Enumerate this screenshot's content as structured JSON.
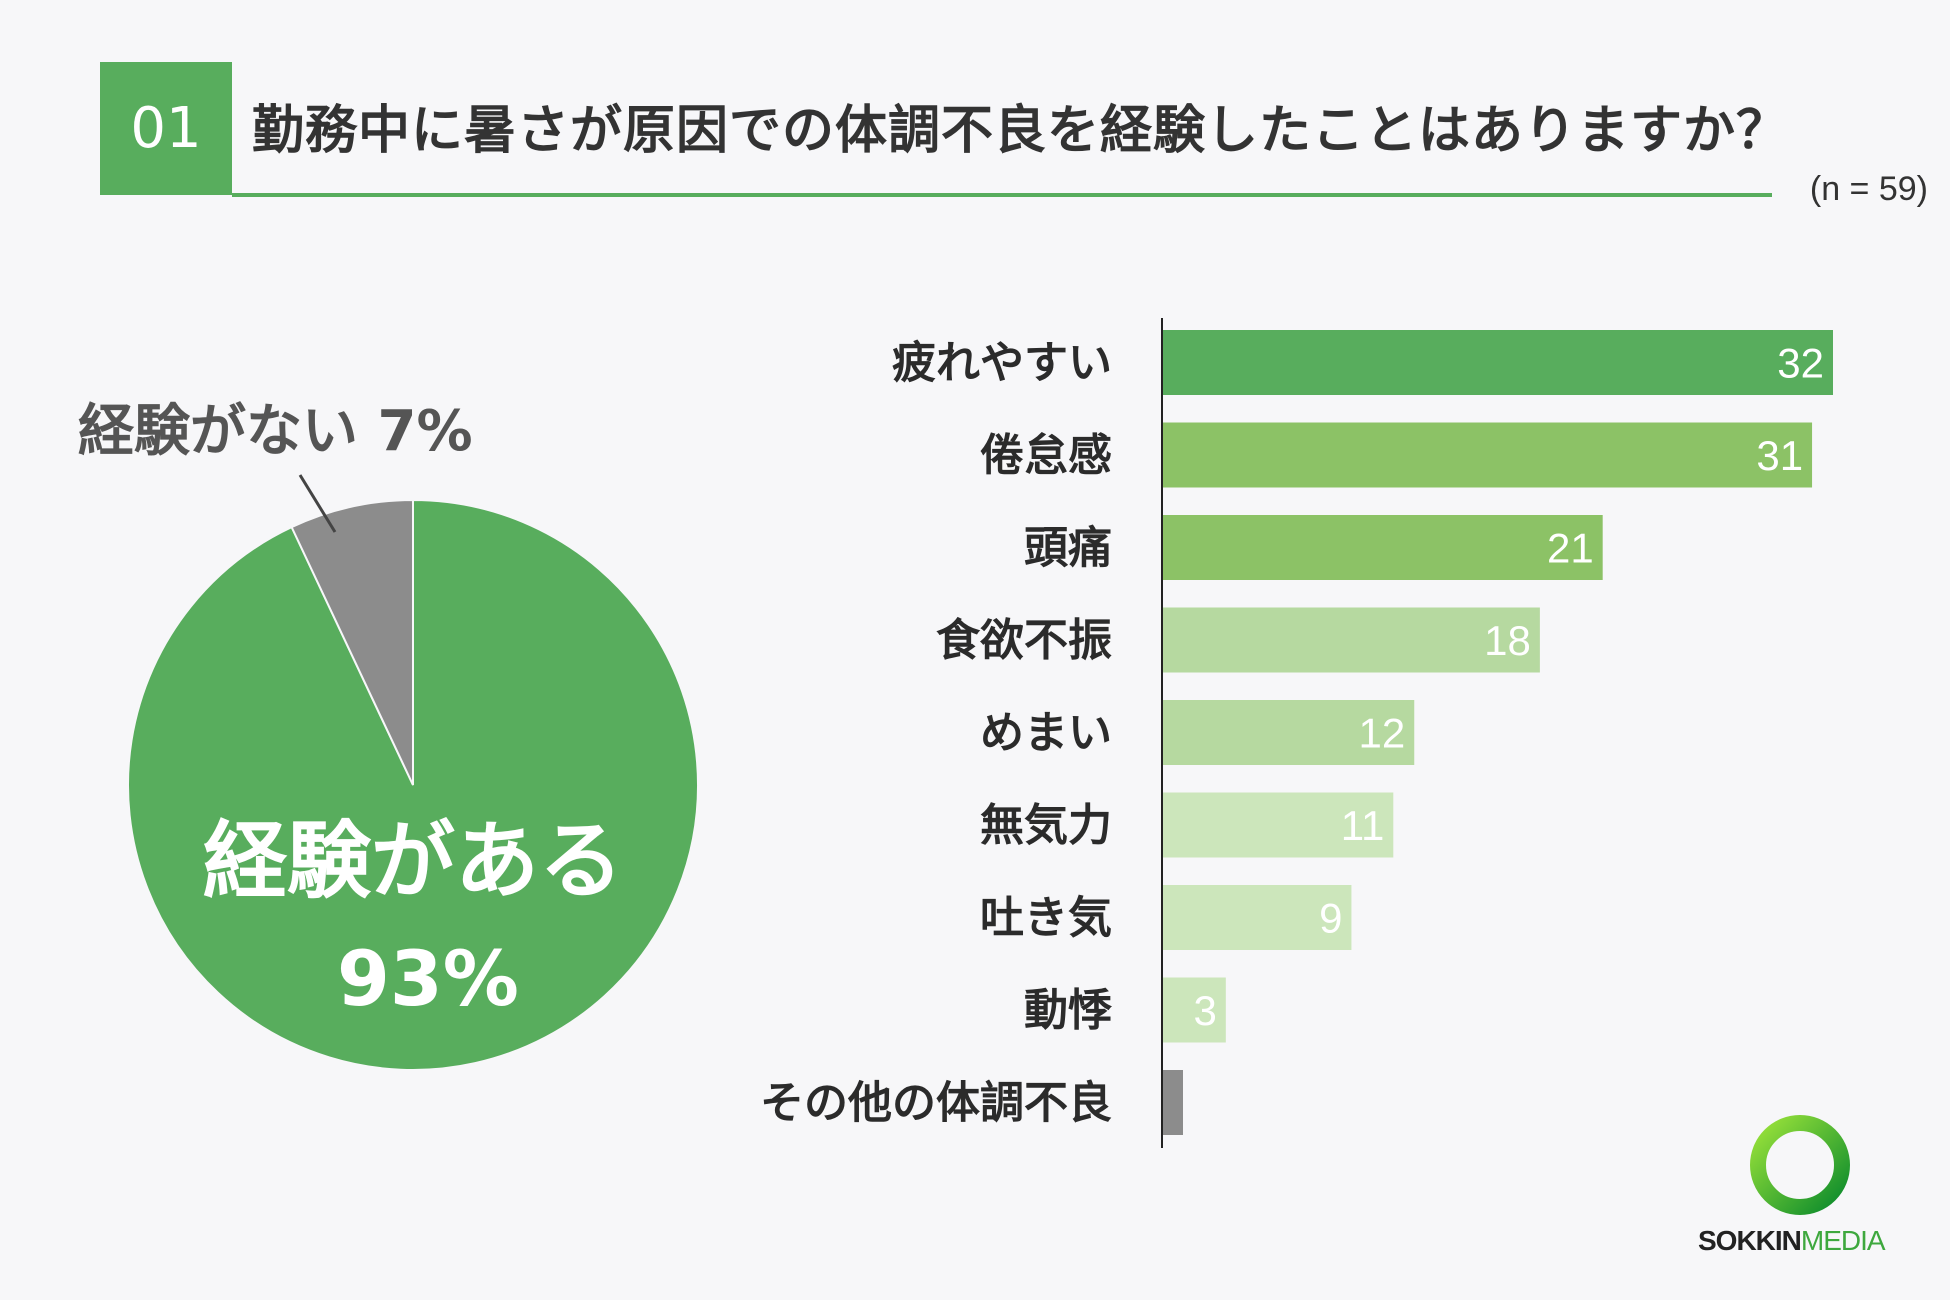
{
  "header": {
    "question_number": "01",
    "question": "勤務中に暑さが原因での体調不良を経験したことはありますか？",
    "sample_size": "(n = 59)"
  },
  "colors": {
    "accent": "#58ad5d",
    "gray": "#8c8c8c",
    "bar_shades": [
      "#58ad5d",
      "#8cc266",
      "#8cc266",
      "#b6d9a0",
      "#b6d9a0",
      "#cce6bb",
      "#cce6bb",
      "#cce6bb",
      "#8c8c8c"
    ]
  },
  "chart_data": [
    {
      "type": "pie",
      "slices": [
        {
          "label": "経験がある",
          "value": 93,
          "value_label": "93%"
        },
        {
          "label": "経験がない",
          "value": 7,
          "value_label": "7%"
        }
      ]
    },
    {
      "type": "bar",
      "orientation": "horizontal",
      "categories": [
        "疲れやすい",
        "倦怠感",
        "頭痛",
        "食欲不振",
        "めまい",
        "無気力",
        "吐き気",
        "動悸",
        "その他の体調不良"
      ],
      "values": [
        32,
        31,
        21,
        18,
        12,
        11,
        9,
        3,
        1
      ],
      "value_labels": [
        "32",
        "31",
        "21",
        "18",
        "12",
        "11",
        "9",
        "3",
        ""
      ]
    }
  ],
  "logo": {
    "part1": "SOKKIN",
    "part2": "MEDIA"
  }
}
